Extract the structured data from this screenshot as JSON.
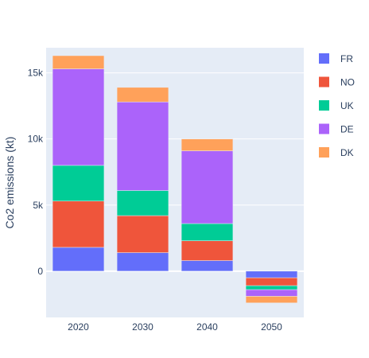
{
  "chart_data": {
    "type": "bar",
    "barmode": "relative",
    "categories": [
      "2020",
      "2030",
      "2040",
      "2050"
    ],
    "series": [
      {
        "name": "FR",
        "color": "#636efa",
        "values": [
          1800,
          1400,
          800,
          -500
        ]
      },
      {
        "name": "NO",
        "color": "#EF553B",
        "values": [
          3500,
          2800,
          1500,
          -600
        ]
      },
      {
        "name": "UK",
        "color": "#00cc96",
        "values": [
          2700,
          1900,
          1300,
          -300
        ]
      },
      {
        "name": "DE",
        "color": "#ab63fa",
        "values": [
          7300,
          6700,
          5500,
          -500
        ]
      },
      {
        "name": "DK",
        "color": "#FFA15A",
        "values": [
          1000,
          1100,
          900,
          -500
        ]
      }
    ],
    "ylabel": "Co2 emissions (kt)",
    "xlabel": "",
    "yticks": [
      0,
      5000,
      10000,
      15000
    ],
    "ytick_labels": [
      "0",
      "5k",
      "10k",
      "15k"
    ],
    "ylim": [
      -3500,
      16900
    ],
    "grid": true,
    "legend_position": "right"
  },
  "colors": {
    "plot_background": "#e5ecf6",
    "grid": "#ffffff",
    "text": "#2a3f5f"
  }
}
